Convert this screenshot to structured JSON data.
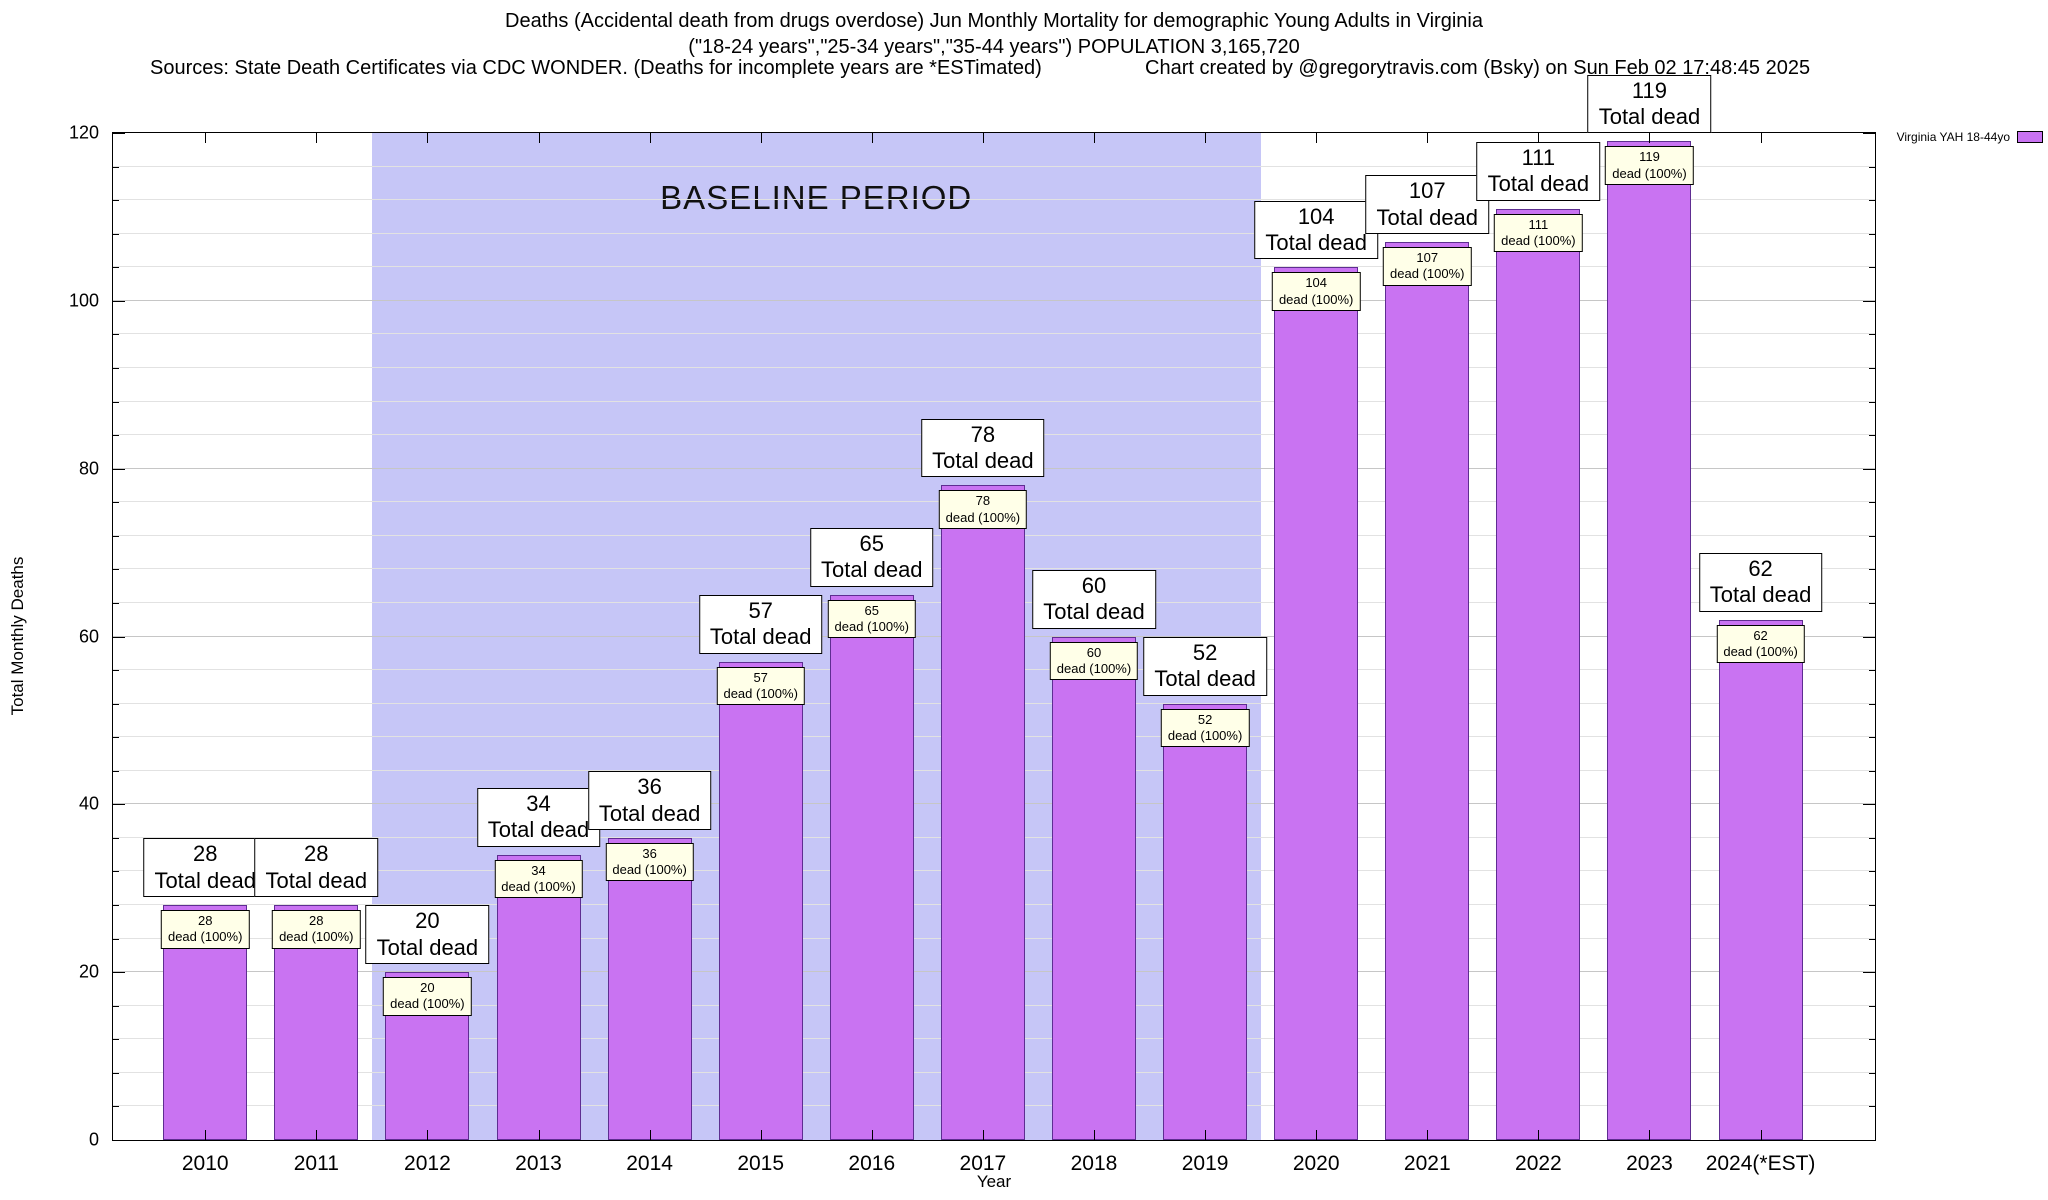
{
  "header": {
    "line1": "Deaths (Accidental death from drugs overdose) Jun Monthly Mortality for demographic Young Adults in Virginia",
    "line2": "(\"18-24 years\",\"25-34 years\",\"35-44 years\") POPULATION 3,165,720",
    "sources": "Sources: State Death Certificates via CDC WONDER. (Deaths for incomplete years are *ESTimated)",
    "credit": "Chart created by @gregorytravis.com (Bsky) on Sun Feb 02 17:48:45 2025"
  },
  "chart_data": {
    "type": "bar",
    "title": "Deaths (Accidental death from drugs overdose) Jun Monthly Mortality for demographic Young Adults in Virginia",
    "subtitle": "(\"18-24 years\",\"25-34 years\",\"35-44 years\") POPULATION 3,165,720",
    "xlabel": "Year",
    "ylabel": "Total Monthly Deaths",
    "ylim": [
      0,
      120
    ],
    "yticks": [
      0,
      20,
      40,
      60,
      80,
      100,
      120
    ],
    "grid": true,
    "categories": [
      "2010",
      "2011",
      "2012",
      "2013",
      "2014",
      "2015",
      "2016",
      "2017",
      "2018",
      "2019",
      "2020",
      "2021",
      "2022",
      "2023",
      "2024(*EST)"
    ],
    "values": [
      28,
      28,
      20,
      34,
      36,
      57,
      65,
      78,
      60,
      52,
      104,
      107,
      111,
      119,
      62
    ],
    "bar_color": "#c973f2",
    "bar_border_color": "#5e2d91",
    "annotations": {
      "outer_suffix": "Total dead",
      "inner_suffix": "dead (100%)",
      "inner_box_color": "#ffffe8"
    },
    "baseline_region": {
      "label": "BASELINE PERIOD",
      "from": "2012",
      "to": "2019",
      "color": "#c6c6f7"
    },
    "legend": {
      "position": "top-right",
      "entries": [
        {
          "label": "Virginia YAH 18-44yo",
          "color": "#c973f2"
        }
      ]
    }
  }
}
